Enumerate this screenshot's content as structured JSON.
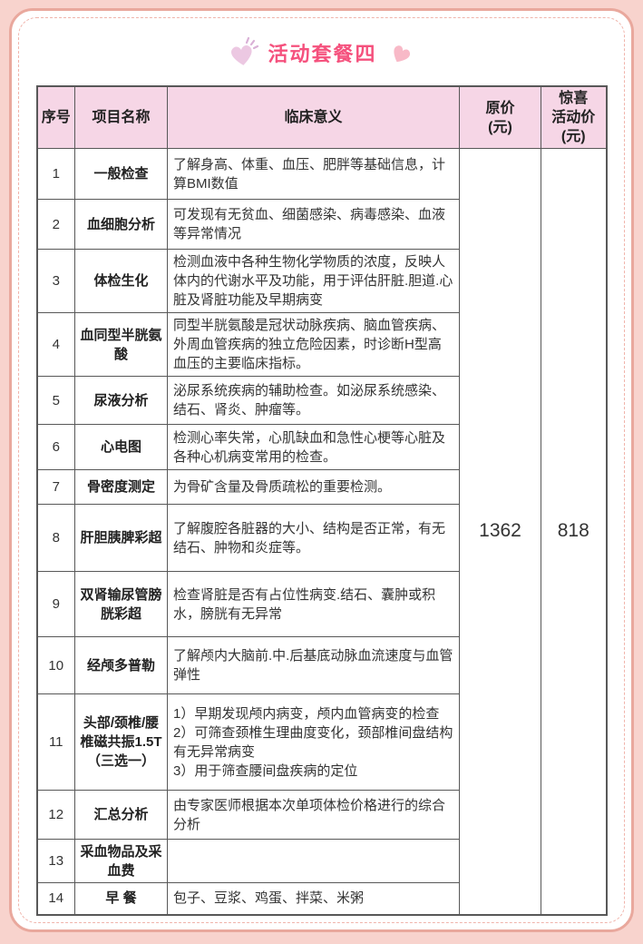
{
  "page": {
    "title": "活动套餐四",
    "title_color": "#f5517d",
    "background_color": "#f8d3cd",
    "frame_border_color": "#e9a89d",
    "header_background": "#f6d6e6",
    "left_icon": "sparkle-heart-icon",
    "right_icon": "heart-icon"
  },
  "table": {
    "headers": [
      "序号",
      "项目名称",
      "临床意义",
      "原价\n(元)",
      "惊喜\n活动价\n(元)"
    ],
    "original_price": "1362",
    "activity_price": "818",
    "rows": [
      {
        "no": "1",
        "name": "一般检查",
        "desc": "了解身高、体重、血压、肥胖等基础信息，计算BMI数值"
      },
      {
        "no": "2",
        "name": "血细胞分析",
        "desc": "可发现有无贫血、细菌感染、病毒感染、血液等异常情况"
      },
      {
        "no": "3",
        "name": "体检生化",
        "desc": "检测血液中各种生物化学物质的浓度，反映人体内的代谢水平及功能，用于评估肝脏.胆道.心脏及肾脏功能及早期病变"
      },
      {
        "no": "4",
        "name": "血同型半胱氨酸",
        "desc": "同型半胱氨酸是冠状动脉疾病、脑血管疾病、外周血管疾病的独立危险因素，时诊断H型高血压的主要临床指标。"
      },
      {
        "no": "5",
        "name": "尿液分析",
        "desc": "泌尿系统疾病的辅助检查。如泌尿系统感染、结石、肾炎、肿瘤等。"
      },
      {
        "no": "6",
        "name": "心电图",
        "desc": "检测心率失常，心肌缺血和急性心梗等心脏及各种心机病变常用的检查。"
      },
      {
        "no": "7",
        "name": "骨密度测定",
        "desc": "为骨矿含量及骨质疏松的重要检测。"
      },
      {
        "no": "8",
        "name": "肝胆胰脾彩超",
        "desc": "了解腹腔各脏器的大小、结构是否正常，有无结石、肿物和炎症等。"
      },
      {
        "no": "9",
        "name": "双肾输尿管膀胱彩超",
        "desc": "检查肾脏是否有占位性病变.结石、囊肿或积水，膀胱有无异常"
      },
      {
        "no": "10",
        "name": "经颅多普勒",
        "desc": "了解颅内大脑前.中.后基底动脉血流速度与血管弹性"
      },
      {
        "no": "11",
        "name": "头部/颈椎/腰椎磁共振1.5T（三选一）",
        "desc": "1）早期发现颅内病变，颅内血管病变的检查\n2）可筛查颈椎生理曲度变化，颈部椎间盘结构有无异常病变\n3）用于筛查腰间盘疾病的定位"
      },
      {
        "no": "12",
        "name": "汇总分析",
        "desc": "由专家医师根据本次单项体检价格进行的综合分析"
      },
      {
        "no": "13",
        "name": "采血物品及采血费",
        "desc": ""
      },
      {
        "no": "14",
        "name": "早 餐",
        "desc": "包子、豆浆、鸡蛋、拌菜、米粥"
      }
    ]
  }
}
